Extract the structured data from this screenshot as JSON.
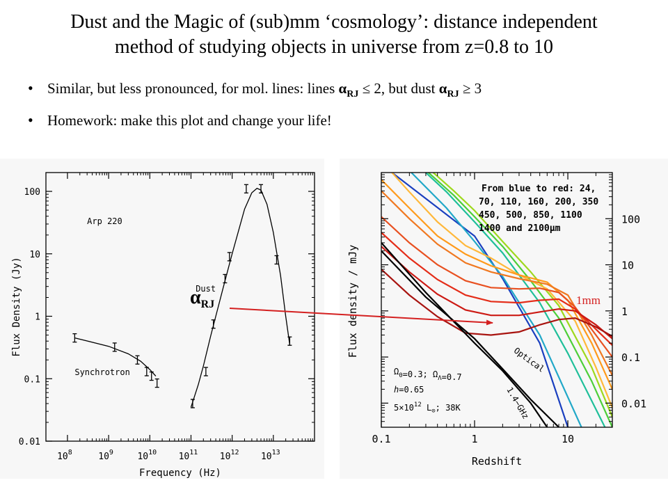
{
  "slide": {
    "title_line1": "Dust and the Magic of (sub)mm ‘cosmology’: distance independent",
    "title_line2": "method of studying objects in universe from z=0.8 to 10",
    "bullet1": {
      "text_a": "Similar, but less pronounced, for mol. lines:  lines ",
      "alpha": "α",
      "sub": "RJ",
      "text_b": " ≤ 2,  but dust ",
      "text_c": "  ≥ 3"
    },
    "bullet2": "Homework: make this plot and change your life!",
    "overlay": {
      "alpha_label": "α",
      "alpha_sub": "RJ",
      "mm_label": "1mm",
      "arrow_color": "#d42020",
      "mm_label_color": "#d42020"
    }
  },
  "chart_data": [
    {
      "type": "scatter",
      "title": "",
      "xlabel": "Frequency (Hz)",
      "ylabel": "Flux Density (Jy)",
      "xscale": "log",
      "yscale": "log",
      "xlim": [
        30000000.0,
        100000000000000.0
      ],
      "ylim": [
        0.01,
        200
      ],
      "x_ticks": [
        {
          "v": 100000000.0,
          "base": "10",
          "exp": "8"
        },
        {
          "v": 1000000000.0,
          "base": "10",
          "exp": "9"
        },
        {
          "v": 10000000000.0,
          "base": "10",
          "exp": "10"
        },
        {
          "v": 100000000000.0,
          "base": "10",
          "exp": "11"
        },
        {
          "v": 1000000000000.0,
          "base": "10",
          "exp": "12"
        },
        {
          "v": 10000000000000.0,
          "base": "10",
          "exp": "13"
        }
      ],
      "y_ticks": [
        {
          "v": 100,
          "label": "100"
        },
        {
          "v": 10,
          "label": "10"
        },
        {
          "v": 1,
          "label": "1"
        },
        {
          "v": 0.1,
          "label": "0.1"
        },
        {
          "v": 0.01,
          "label": "0.01"
        }
      ],
      "annotations": [
        {
          "text": "Arp 220",
          "x": 300000000.0,
          "y": 30
        },
        {
          "text": "Dust",
          "x": 130000000000.0,
          "y": 2.5
        },
        {
          "text": "Synchrotron",
          "x": 150000000.0,
          "y": 0.115
        }
      ],
      "points": [
        {
          "x": 150000000.0,
          "y": 0.45
        },
        {
          "x": 1400000000.0,
          "y": 0.32
        },
        {
          "x": 5000000000.0,
          "y": 0.2
        },
        {
          "x": 8400000000.0,
          "y": 0.13
        },
        {
          "x": 11000000000.0,
          "y": 0.11
        },
        {
          "x": 15000000000.0,
          "y": 0.085
        },
        {
          "x": 110000000000.0,
          "y": 0.04
        },
        {
          "x": 230000000000.0,
          "y": 0.13
        },
        {
          "x": 350000000000.0,
          "y": 0.75
        },
        {
          "x": 670000000000.0,
          "y": 4
        },
        {
          "x": 860000000000.0,
          "y": 9
        },
        {
          "x": 2200000000000.0,
          "y": 110
        },
        {
          "x": 5000000000000.0,
          "y": 110
        },
        {
          "x": 12000000000000.0,
          "y": 8
        },
        {
          "x": 25000000000000.0,
          "y": 0.4
        }
      ],
      "curves": [
        {
          "name": "synchrotron",
          "x": [
            150000000.0,
            1000000000.0,
            3000000000.0,
            6000000000.0,
            10000000000.0,
            14000000000.0
          ],
          "y": [
            0.45,
            0.33,
            0.25,
            0.19,
            0.14,
            0.11
          ]
        },
        {
          "name": "dust",
          "x": [
            100000000000.0,
            150000000000.0,
            200000000000.0,
            300000000000.0,
            400000000000.0,
            600000000000.0,
            1000000000000.0,
            2000000000000.0,
            3000000000000.0,
            4000000000000.0,
            5000000000000.0,
            7000000000000.0,
            10000000000000.0,
            15000000000000.0,
            20000000000000.0,
            25000000000000.0
          ],
          "y": [
            0.035,
            0.08,
            0.16,
            0.48,
            1.0,
            2.8,
            10,
            52,
            95,
            112,
            105,
            62,
            22,
            4.5,
            1.0,
            0.35
          ]
        }
      ]
    },
    {
      "type": "line",
      "title": "",
      "xlabel": "Redshift",
      "ylabel": "Flux density / mJy",
      "xscale": "log",
      "yscale": "log",
      "xlim": [
        0.1,
        30
      ],
      "ylim": [
        0.003,
        1000
      ],
      "x_ticks": [
        {
          "v": 0.1,
          "label": "0.1"
        },
        {
          "v": 1,
          "label": "1"
        },
        {
          "v": 10,
          "label": "10"
        }
      ],
      "y_ticks": [
        {
          "v": 100,
          "label": "100"
        },
        {
          "v": 10,
          "label": "10"
        },
        {
          "v": 1,
          "label": "1"
        },
        {
          "v": 0.1,
          "label": "0.1"
        },
        {
          "v": 0.01,
          "label": "0.01"
        }
      ],
      "legend_text": [
        "From blue to red: 24,",
        "70, 110, 160, 200, 350",
        "450, 500, 850, 1100",
        "1400 and 2100μm"
      ],
      "params_text": [
        {
          "base": "Ω",
          "sub": "0",
          "rest": "=0.3;  ",
          "base2": "Ω",
          "sub2": "Λ",
          "rest2": "=0.7"
        },
        {
          "base": "h",
          "sub": "",
          "rest": "=0.65",
          "base2": "",
          "sub2": "",
          "rest2": ""
        },
        {
          "base": "5×10",
          "sup": "12",
          "rest": " L",
          "sub2": "⊙",
          "rest2": "; 38K"
        }
      ],
      "line_labels": [
        {
          "text": "Optical",
          "x": 2.6,
          "y": 0.13,
          "angle": 36
        },
        {
          "text": "1.4−GHz",
          "x": 2.2,
          "y": 0.02,
          "angle": 60
        }
      ],
      "series": [
        {
          "name": "24",
          "color": "#1a3fbf",
          "x": [
            0.13,
            1,
            2,
            5,
            10
          ],
          "y": [
            1000,
            42,
            5,
            0.2,
            0.003
          ]
        },
        {
          "name": "70",
          "color": "#22a8c8",
          "x": [
            0.21,
            0.5,
            1,
            2,
            5,
            14
          ],
          "y": [
            1000,
            170,
            32,
            5.5,
            0.3,
            0.003
          ]
        },
        {
          "name": "110",
          "color": "#1fbf9a",
          "x": [
            0.3,
            0.5,
            1,
            2,
            5,
            10,
            25
          ],
          "y": [
            1000,
            380,
            85,
            18,
            1.5,
            0.12,
            0.003
          ]
        },
        {
          "name": "160",
          "color": "#4ccf38",
          "x": [
            0.32,
            0.6,
            1,
            2,
            4,
            8,
            18,
            30
          ],
          "y": [
            1000,
            320,
            110,
            25,
            4.5,
            0.7,
            0.03,
            0.003
          ]
        },
        {
          "name": "200",
          "color": "#9ed81c",
          "x": [
            0.36,
            0.6,
            1,
            2,
            4,
            8,
            18,
            30
          ],
          "y": [
            1000,
            400,
            150,
            32,
            7,
            1.3,
            0.06,
            0.005
          ]
        },
        {
          "name": "350",
          "color": "#ffb83a",
          "x": [
            0.13,
            0.2,
            0.4,
            0.8,
            1.5,
            3,
            6,
            12,
            20,
            30
          ],
          "y": [
            1000,
            380,
            85,
            26,
            14,
            6,
            3,
            0.6,
            0.06,
            0.008
          ]
        },
        {
          "name": "450",
          "color": "#ff9a1a",
          "x": [
            0.1,
            0.2,
            0.4,
            0.8,
            1.5,
            3,
            6,
            10,
            18,
            30
          ],
          "y": [
            700,
            170,
            42,
            17,
            9.5,
            6,
            4.2,
            1.7,
            0.2,
            0.02
          ]
        },
        {
          "name": "500",
          "color": "#f07820",
          "x": [
            0.1,
            0.2,
            0.4,
            0.8,
            1.5,
            3,
            6,
            10,
            18,
            30
          ],
          "y": [
            400,
            100,
            28,
            11,
            7,
            5,
            3.8,
            2.2,
            0.3,
            0.04
          ]
        },
        {
          "name": "850",
          "color": "#e85020",
          "x": [
            0.1,
            0.2,
            0.4,
            0.8,
            1.5,
            3,
            5,
            8,
            12,
            20,
            30
          ],
          "y": [
            110,
            30,
            10,
            4.5,
            3.2,
            3.0,
            3.1,
            2.5,
            1.2,
            0.3,
            0.1
          ]
        },
        {
          "name": "1100",
          "color": "#e42c18",
          "x": [
            0.1,
            0.2,
            0.4,
            0.8,
            1.5,
            3,
            5,
            8,
            12,
            20,
            30
          ],
          "y": [
            50,
            14,
            4.8,
            2.2,
            1.6,
            1.5,
            1.7,
            1.8,
            1.1,
            0.4,
            0.18
          ]
        },
        {
          "name": "1400",
          "color": "#cc1a14",
          "x": [
            0.1,
            0.2,
            0.4,
            0.8,
            1.5,
            3,
            5,
            8,
            12,
            20,
            30
          ],
          "y": [
            25,
            7,
            2.3,
            1.05,
            0.8,
            0.8,
            0.95,
            1.1,
            1.0,
            0.5,
            0.25
          ]
        },
        {
          "name": "2100",
          "color": "#a81410",
          "x": [
            0.1,
            0.2,
            0.4,
            0.8,
            1.5,
            3,
            5,
            8,
            12,
            20,
            30
          ],
          "y": [
            8,
            2.2,
            0.75,
            0.33,
            0.3,
            0.35,
            0.5,
            0.65,
            0.7,
            0.45,
            0.28
          ]
        },
        {
          "name": "Optical",
          "color": "#000000",
          "x": [
            0.1,
            0.3,
            1,
            2,
            4,
            8
          ],
          "y": [
            20,
            2,
            0.25,
            0.055,
            0.012,
            0.003
          ]
        },
        {
          "name": "1.4-GHz",
          "color": "#000000",
          "x": [
            0.1,
            0.3,
            1,
            2,
            4,
            6
          ],
          "y": [
            30,
            2.5,
            0.2,
            0.05,
            0.01,
            0.003
          ]
        }
      ]
    }
  ]
}
